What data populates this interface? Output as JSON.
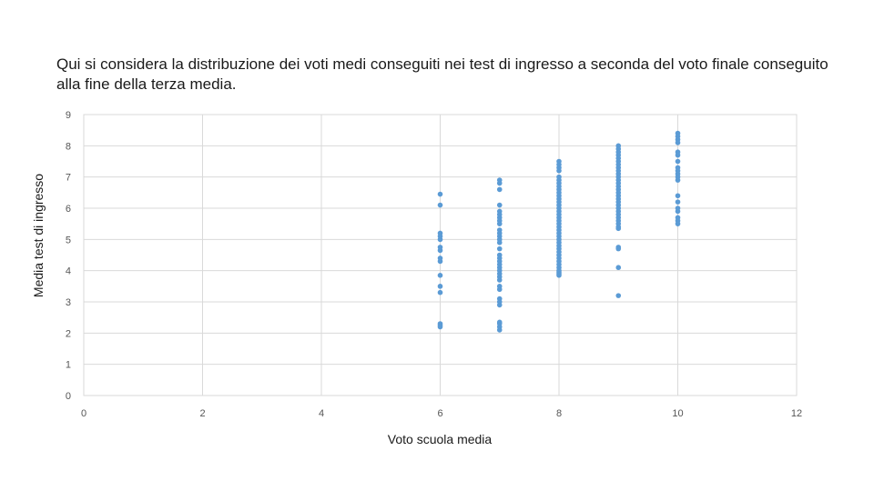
{
  "slide": {
    "title": "Qui si considera la distribuzione dei voti medi conseguiti nei test di ingresso a seconda del voto finale conseguito alla fine della terza media."
  },
  "chart_data": {
    "type": "scatter",
    "xlabel": "Voto scuola media",
    "ylabel": "Media test di ingresso",
    "xlim": [
      0,
      12
    ],
    "ylim": [
      0,
      9
    ],
    "x_ticks": [
      0,
      2,
      4,
      6,
      8,
      10,
      12
    ],
    "y_ticks": [
      0,
      1,
      2,
      3,
      4,
      5,
      6,
      7,
      8,
      9
    ],
    "grid": true,
    "legend": "none",
    "color": "#5b9bd5",
    "series": [
      {
        "x": [
          6,
          6,
          6,
          6,
          6,
          6,
          6,
          6,
          6,
          6,
          6,
          6,
          6,
          6,
          6
        ],
        "y": [
          6.45,
          6.1,
          5.2,
          5.1,
          5.0,
          4.75,
          4.65,
          4.4,
          4.3,
          3.85,
          3.5,
          3.3,
          2.3,
          2.25,
          2.2
        ]
      },
      {
        "x": [
          7,
          7,
          7,
          7,
          7,
          7,
          7,
          7,
          7,
          7,
          7,
          7,
          7,
          7,
          7,
          7,
          7,
          7,
          7,
          7,
          7,
          7,
          7,
          7,
          7,
          7,
          7,
          7,
          7,
          7,
          7,
          7,
          7
        ],
        "y": [
          6.9,
          6.8,
          6.6,
          6.1,
          5.9,
          5.8,
          5.7,
          5.6,
          5.5,
          5.3,
          5.2,
          5.1,
          5.0,
          4.9,
          4.7,
          4.5,
          4.4,
          4.3,
          4.2,
          4.1,
          4.0,
          3.9,
          3.8,
          3.7,
          3.5,
          3.4,
          3.1,
          3.0,
          2.9,
          2.35,
          2.3,
          2.2,
          2.1
        ]
      },
      {
        "x": [
          8,
          8,
          8,
          8,
          8,
          8,
          8,
          8,
          8,
          8,
          8,
          8,
          8,
          8,
          8,
          8,
          8,
          8,
          8,
          8,
          8,
          8,
          8,
          8,
          8,
          8,
          8,
          8,
          8,
          8,
          8,
          8,
          8,
          8,
          8,
          8,
          8,
          8
        ],
        "y": [
          7.5,
          7.4,
          7.3,
          7.2,
          7.0,
          6.9,
          6.8,
          6.7,
          6.6,
          6.5,
          6.4,
          6.3,
          6.2,
          6.1,
          6.0,
          5.9,
          5.8,
          5.7,
          5.6,
          5.5,
          5.4,
          5.3,
          5.2,
          5.1,
          5.0,
          4.9,
          4.8,
          4.7,
          4.6,
          4.5,
          4.4,
          4.3,
          4.2,
          4.1,
          4.0,
          3.95,
          3.9,
          3.85
        ]
      },
      {
        "x": [
          9,
          9,
          9,
          9,
          9,
          9,
          9,
          9,
          9,
          9,
          9,
          9,
          9,
          9,
          9,
          9,
          9,
          9,
          9,
          9,
          9,
          9,
          9,
          9,
          9,
          9,
          9,
          9,
          9,
          9,
          9,
          9
        ],
        "y": [
          8.0,
          7.9,
          7.8,
          7.7,
          7.6,
          7.5,
          7.4,
          7.3,
          7.2,
          7.1,
          7.0,
          6.9,
          6.8,
          6.7,
          6.6,
          6.5,
          6.4,
          6.3,
          6.2,
          6.1,
          6.0,
          5.9,
          5.8,
          5.7,
          5.6,
          5.5,
          5.4,
          5.35,
          4.75,
          4.7,
          4.1,
          3.2
        ]
      },
      {
        "x": [
          10,
          10,
          10,
          10,
          10,
          10,
          10,
          10,
          10,
          10,
          10,
          10,
          10,
          10,
          10,
          10,
          10,
          10,
          10
        ],
        "y": [
          8.4,
          8.3,
          8.2,
          8.1,
          7.8,
          7.7,
          7.5,
          7.3,
          7.2,
          7.1,
          7.0,
          6.9,
          6.4,
          6.2,
          6.0,
          5.9,
          5.7,
          5.6,
          5.5
        ]
      }
    ]
  }
}
